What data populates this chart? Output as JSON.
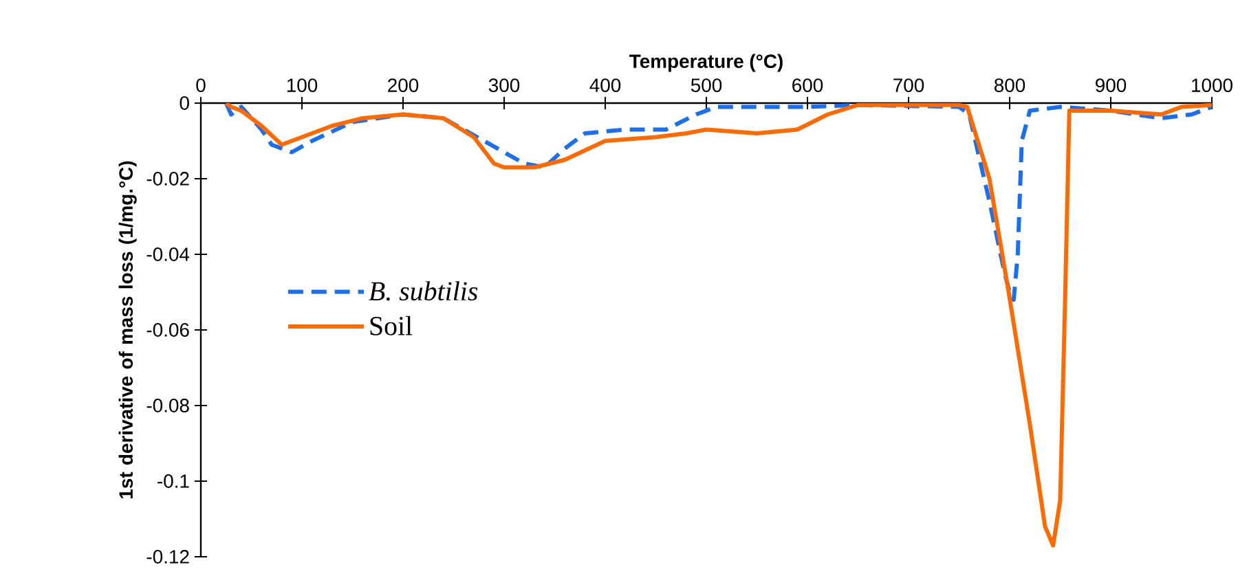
{
  "chart_data": {
    "type": "line",
    "xlabel": "Temperature (°C)",
    "ylabel": "1st derivative of mass loss (1/mg.°C)",
    "xlim": [
      0,
      1000
    ],
    "xticks": [
      0,
      100,
      200,
      300,
      400,
      500,
      600,
      700,
      800,
      900,
      1000
    ],
    "ylim": [
      -0.12,
      0
    ],
    "yticks": [
      -0.12,
      -0.1,
      -0.08,
      -0.06,
      -0.04,
      -0.02,
      0
    ],
    "grid": false,
    "legend": "left",
    "marker": "none",
    "series": [
      {
        "name": "B. subtilis",
        "color": "#1a6ff0",
        "line_style": "dashed",
        "x": [
          25,
          30,
          40,
          60,
          70,
          90,
          110,
          150,
          200,
          240,
          280,
          320,
          340,
          360,
          380,
          420,
          460,
          490,
          510,
          600,
          650,
          750,
          760,
          780,
          795,
          800,
          804,
          808,
          812,
          820,
          850,
          900,
          950,
          980,
          1000
        ],
        "values": [
          0,
          -0.003,
          -0.001,
          -0.007,
          -0.011,
          -0.013,
          -0.01,
          -0.005,
          -0.003,
          -0.004,
          -0.01,
          -0.016,
          -0.017,
          -0.012,
          -0.008,
          -0.007,
          -0.007,
          -0.003,
          -0.001,
          -0.001,
          -0.0005,
          -0.001,
          -0.003,
          -0.026,
          -0.045,
          -0.05,
          -0.052,
          -0.04,
          -0.01,
          -0.002,
          -0.001,
          -0.002,
          -0.004,
          -0.003,
          -0.001
        ]
      },
      {
        "name": "Soil",
        "color": "#ff6a00",
        "line_style": "solid",
        "x": [
          25,
          30,
          40,
          60,
          80,
          100,
          130,
          160,
          200,
          240,
          270,
          290,
          300,
          330,
          360,
          400,
          450,
          480,
          500,
          550,
          590,
          620,
          650,
          700,
          750,
          758,
          780,
          799,
          820,
          835,
          843,
          850,
          855,
          859,
          900,
          950,
          970,
          1000
        ],
        "values": [
          0,
          -0.001,
          -0.002,
          -0.006,
          -0.011,
          -0.009,
          -0.006,
          -0.004,
          -0.003,
          -0.004,
          -0.009,
          -0.016,
          -0.017,
          -0.017,
          -0.015,
          -0.01,
          -0.009,
          -0.008,
          -0.007,
          -0.008,
          -0.007,
          -0.003,
          -0.0005,
          -0.0005,
          -0.0005,
          -0.001,
          -0.02,
          -0.05,
          -0.085,
          -0.112,
          -0.117,
          -0.105,
          -0.05,
          -0.002,
          -0.002,
          -0.003,
          -0.001,
          -0.0005
        ]
      }
    ]
  }
}
